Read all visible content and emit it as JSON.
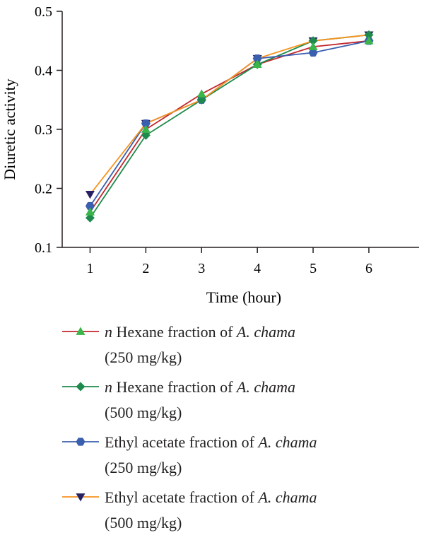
{
  "chart_data": {
    "type": "line",
    "title": "",
    "xlabel": "Time (hour)",
    "ylabel": "Diuretic activity",
    "x": [
      1,
      2,
      3,
      4,
      5,
      6
    ],
    "xticks": [
      "1",
      "2",
      "3",
      "4",
      "5",
      "6"
    ],
    "yticks": [
      "0.1",
      "0.2",
      "0.3",
      "0.4",
      "0.5"
    ],
    "ylim": [
      0.1,
      0.5
    ],
    "xlim": [
      0.5,
      6.9
    ],
    "grid": false,
    "legend_position": "bottom",
    "series": [
      {
        "name": "n Hexane fraction of A. chama (250 mg/kg)",
        "values": [
          0.16,
          0.3,
          0.36,
          0.41,
          0.44,
          0.45
        ],
        "color": "#c1272d",
        "marker_color": "#39b54a",
        "marker": "triangle-up"
      },
      {
        "name": "n Hexane fraction of A. chama (500 mg/kg)",
        "values": [
          0.15,
          0.29,
          0.35,
          0.41,
          0.45,
          0.46
        ],
        "color": "#1e8a4c",
        "marker_color": "#1e8a4c",
        "marker": "diamond"
      },
      {
        "name": "Ethyl acetate fraction of A. chama (250 mg/kg)",
        "values": [
          0.17,
          0.31,
          0.35,
          0.42,
          0.43,
          0.45
        ],
        "color": "#3a5fae",
        "marker_color": "#3a5fae",
        "marker": "hexagon"
      },
      {
        "name": "Ethyl acetate fraction of A. chama (500 mg/kg)",
        "values": [
          0.19,
          0.31,
          0.35,
          0.42,
          0.45,
          0.46
        ],
        "color": "#f7931e",
        "marker_color": "#262262",
        "marker": "triangle-down"
      }
    ]
  },
  "legend": {
    "items": [
      {
        "prefix": "n",
        "text": " Hexane fraction of ",
        "species": "A. chama",
        "dose": "(250 mg/kg)"
      },
      {
        "prefix": "n",
        "text": " Hexane fraction of ",
        "species": "A. chama",
        "dose": "(500 mg/kg)"
      },
      {
        "prefix": "",
        "text": "Ethyl acetate fraction of ",
        "species": "A. chama",
        "dose": "(250 mg/kg)"
      },
      {
        "prefix": "",
        "text": "Ethyl acetate fraction of ",
        "species": "A. chama",
        "dose": "(500 mg/kg)"
      }
    ]
  }
}
